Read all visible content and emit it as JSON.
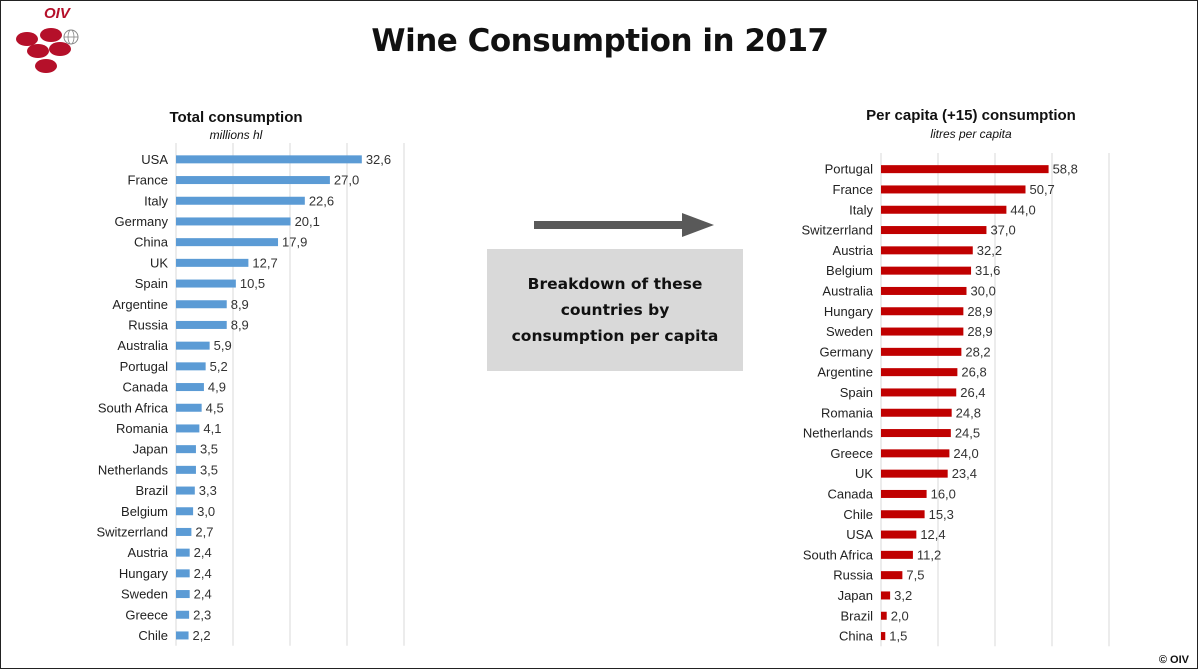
{
  "header": {
    "logo_text": "OIV",
    "title": "Wine Consumption in 2017"
  },
  "middle": {
    "breakdown_text": "Breakdown of these countries by consumption per capita"
  },
  "footer": {
    "copyright": "© OIV"
  },
  "colors": {
    "total_bar": "#5b9bd5",
    "percapita_bar": "#c00000",
    "logo": "#b5102a"
  },
  "icons": {
    "logo": "oiv-grape-logo-icon",
    "arrow": "arrow-right-icon"
  },
  "chart_data": [
    {
      "type": "bar",
      "orientation": "horizontal",
      "title": "Total consumption",
      "subtitle": "millions hl",
      "grid": true,
      "xlim": [
        0,
        40
      ],
      "categories": [
        "USA",
        "France",
        "Italy",
        "Germany",
        "China",
        "UK",
        "Spain",
        "Argentine",
        "Russia",
        "Australia",
        "Portugal",
        "Canada",
        "South Africa",
        "Romania",
        "Japan",
        "Netherlands",
        "Brazil",
        "Belgium",
        "Switzerrland",
        "Austria",
        "Hungary",
        "Sweden",
        "Greece",
        "Chile"
      ],
      "values": [
        32.6,
        27.0,
        22.6,
        20.1,
        17.9,
        12.7,
        10.5,
        8.9,
        8.9,
        5.9,
        5.2,
        4.9,
        4.5,
        4.1,
        3.5,
        3.5,
        3.3,
        3.0,
        2.7,
        2.4,
        2.4,
        2.4,
        2.3,
        2.2
      ],
      "value_labels": [
        "32,6",
        "27,0",
        "22,6",
        "20,1",
        "17,9",
        "12,7",
        "10,5",
        "8,9",
        "8,9",
        "5,9",
        "5,2",
        "4,9",
        "4,5",
        "4,1",
        "3,5",
        "3,5",
        "3,3",
        "3,0",
        "2,7",
        "2,4",
        "2,4",
        "2,4",
        "2,3",
        "2,2"
      ]
    },
    {
      "type": "bar",
      "orientation": "horizontal",
      "title": "Per capita (+15) consumption",
      "subtitle": "litres per capita",
      "grid": true,
      "xlim": [
        0,
        80
      ],
      "categories": [
        "Portugal",
        "France",
        "Italy",
        "Switzerrland",
        "Austria",
        "Belgium",
        "Australia",
        "Hungary",
        "Sweden",
        "Germany",
        "Argentine",
        "Spain",
        "Romania",
        "Netherlands",
        "Greece",
        "UK",
        "Canada",
        "Chile",
        "USA",
        "South Africa",
        "Russia",
        "Japan",
        "Brazil",
        "China"
      ],
      "values": [
        58.8,
        50.7,
        44.0,
        37.0,
        32.2,
        31.6,
        30.0,
        28.9,
        28.9,
        28.2,
        26.8,
        26.4,
        24.8,
        24.5,
        24.0,
        23.4,
        16.0,
        15.3,
        12.4,
        11.2,
        7.5,
        3.2,
        2.0,
        1.5
      ],
      "value_labels": [
        "58,8",
        "50,7",
        "44,0",
        "37,0",
        "32,2",
        "31,6",
        "30,0",
        "28,9",
        "28,9",
        "28,2",
        "26,8",
        "26,4",
        "24,8",
        "24,5",
        "24,0",
        "23,4",
        "16,0",
        "15,3",
        "12,4",
        "11,2",
        "7,5",
        "3,2",
        "2,0",
        "1,5"
      ]
    }
  ]
}
